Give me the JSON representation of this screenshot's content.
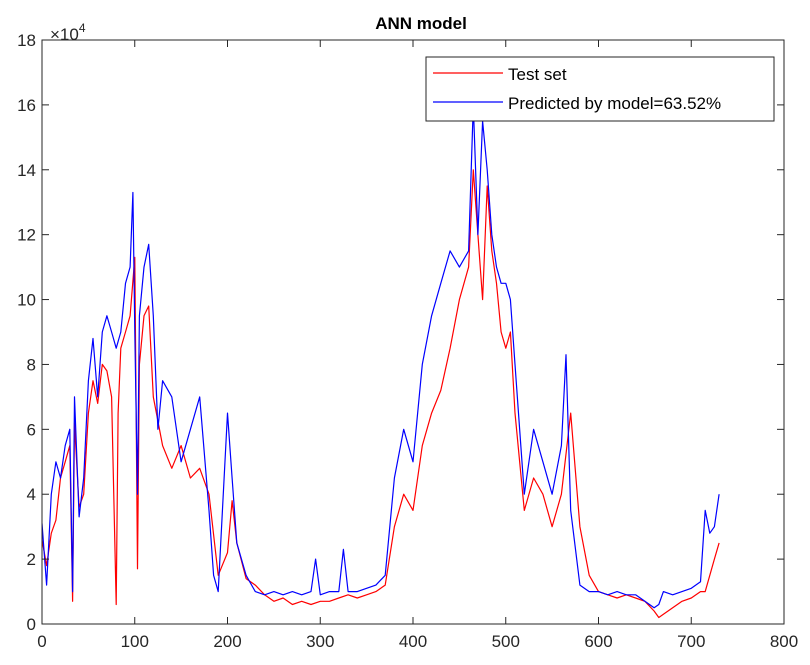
{
  "chart_data": {
    "type": "line",
    "title": "ANN model",
    "xlabel": "",
    "ylabel": "",
    "y_exponent_label": "×10",
    "y_exponent_power": "4",
    "xlim": [
      0,
      800
    ],
    "ylim": [
      0,
      18
    ],
    "xticks": [
      0,
      100,
      200,
      300,
      400,
      500,
      600,
      700,
      800
    ],
    "yticks": [
      0,
      2,
      4,
      6,
      8,
      10,
      12,
      14,
      16,
      18
    ],
    "grid": false,
    "legend_position": "top-right",
    "series": [
      {
        "name": "Test set",
        "color": "#ff0000",
        "x": [
          0,
          5,
          10,
          15,
          20,
          25,
          30,
          33,
          35,
          40,
          45,
          50,
          55,
          60,
          65,
          70,
          75,
          80,
          82,
          85,
          90,
          95,
          100,
          103,
          105,
          110,
          115,
          120,
          130,
          140,
          150,
          160,
          170,
          180,
          190,
          200,
          205,
          210,
          220,
          230,
          240,
          250,
          260,
          270,
          280,
          290,
          300,
          310,
          320,
          330,
          340,
          350,
          360,
          370,
          380,
          390,
          400,
          410,
          420,
          430,
          440,
          450,
          460,
          465,
          470,
          475,
          480,
          485,
          490,
          495,
          500,
          505,
          510,
          520,
          530,
          540,
          550,
          560,
          570,
          580,
          590,
          600,
          610,
          620,
          630,
          640,
          650,
          660,
          665,
          670,
          680,
          690,
          700,
          710,
          715,
          720,
          725,
          730
        ],
        "y": [
          2.6,
          1.8,
          2.8,
          3.2,
          4.5,
          5.0,
          5.5,
          0.7,
          6.2,
          3.6,
          4.0,
          6.5,
          7.5,
          6.8,
          8.0,
          7.8,
          7.0,
          0.6,
          6.5,
          8.5,
          9.0,
          9.5,
          11.3,
          1.7,
          8.0,
          9.5,
          9.8,
          7.0,
          5.5,
          4.8,
          5.5,
          4.5,
          4.8,
          4.0,
          1.5,
          2.2,
          3.8,
          2.5,
          1.4,
          1.2,
          0.9,
          0.7,
          0.8,
          0.6,
          0.7,
          0.6,
          0.7,
          0.7,
          0.8,
          0.9,
          0.8,
          0.9,
          1.0,
          1.2,
          3.0,
          4.0,
          3.5,
          5.5,
          6.5,
          7.2,
          8.5,
          10.0,
          11.0,
          14.0,
          12.0,
          10.0,
          13.5,
          11.5,
          10.5,
          9.0,
          8.5,
          9.0,
          6.5,
          3.5,
          4.5,
          4.0,
          3.0,
          4.0,
          6.5,
          3.0,
          1.5,
          1.0,
          0.9,
          0.8,
          0.9,
          0.8,
          0.7,
          0.4,
          0.2,
          0.3,
          0.5,
          0.7,
          0.8,
          1.0,
          1.0,
          1.5,
          2.0,
          2.5
        ]
      },
      {
        "name": "Predicted by model=63.52%",
        "color": "#0000ff",
        "x": [
          0,
          5,
          10,
          15,
          20,
          25,
          30,
          33,
          35,
          40,
          45,
          50,
          55,
          60,
          65,
          70,
          75,
          80,
          85,
          90,
          95,
          98,
          100,
          103,
          105,
          110,
          115,
          120,
          125,
          130,
          140,
          150,
          160,
          170,
          180,
          185,
          190,
          200,
          205,
          210,
          220,
          230,
          240,
          250,
          260,
          270,
          280,
          290,
          295,
          300,
          310,
          320,
          325,
          330,
          340,
          350,
          360,
          370,
          380,
          390,
          400,
          410,
          420,
          430,
          440,
          450,
          460,
          465,
          470,
          475,
          480,
          485,
          490,
          495,
          500,
          505,
          510,
          520,
          530,
          540,
          550,
          560,
          565,
          570,
          580,
          590,
          600,
          610,
          620,
          630,
          640,
          650,
          660,
          665,
          670,
          680,
          690,
          700,
          710,
          715,
          720,
          725,
          730
        ],
        "y": [
          3.1,
          1.2,
          4.0,
          5.0,
          4.5,
          5.5,
          6.0,
          1.0,
          7.0,
          3.3,
          4.5,
          7.5,
          8.8,
          7.0,
          9.0,
          9.5,
          9.0,
          8.5,
          9.0,
          10.5,
          11.0,
          13.3,
          9.0,
          4.0,
          9.5,
          11.0,
          11.7,
          9.5,
          6.0,
          7.5,
          7.0,
          5.0,
          6.0,
          7.0,
          3.5,
          1.5,
          1.0,
          6.5,
          4.5,
          2.5,
          1.5,
          1.0,
          0.9,
          1.0,
          0.9,
          1.0,
          0.9,
          1.0,
          2.0,
          0.9,
          1.0,
          1.0,
          2.3,
          1.0,
          1.0,
          1.1,
          1.2,
          1.5,
          4.5,
          6.0,
          5.0,
          8.0,
          9.5,
          10.5,
          11.5,
          11.0,
          11.5,
          16.0,
          12.0,
          15.5,
          14.0,
          12.0,
          11.0,
          10.5,
          10.5,
          10.0,
          8.0,
          4.0,
          6.0,
          5.0,
          4.0,
          5.5,
          8.3,
          3.5,
          1.2,
          1.0,
          1.0,
          0.9,
          1.0,
          0.9,
          0.9,
          0.7,
          0.5,
          0.6,
          1.0,
          0.9,
          1.0,
          1.1,
          1.3,
          3.5,
          2.8,
          3.0,
          4.0
        ]
      }
    ]
  }
}
